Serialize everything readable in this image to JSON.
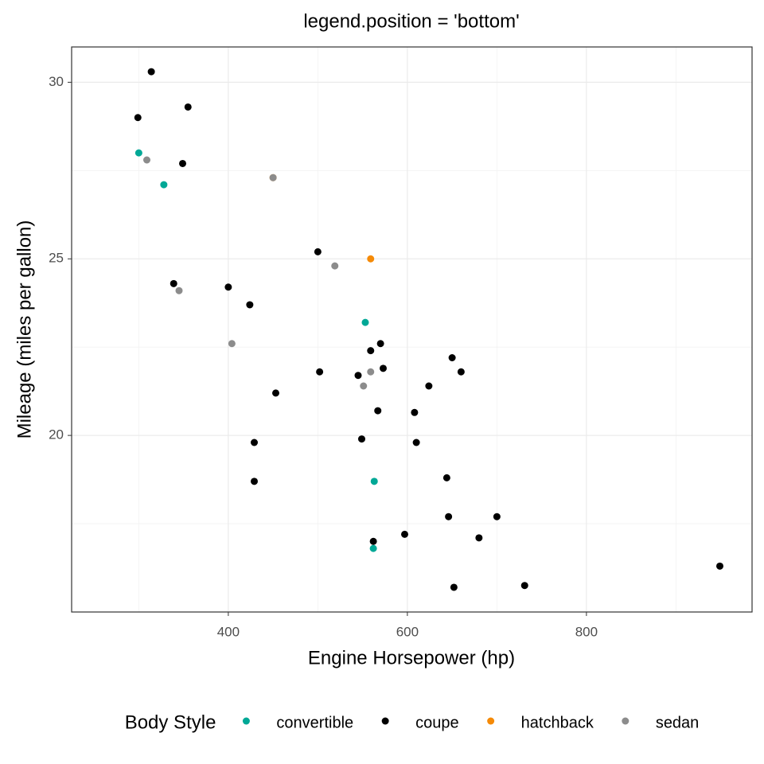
{
  "chart_data": {
    "type": "scatter",
    "title": "legend.position = 'bottom'",
    "x_label": "Engine Horsepower (hp)",
    "y_label": "Mileage (miles per gallon)",
    "xlim": [
      225,
      985
    ],
    "ylim": [
      15,
      31
    ],
    "xticks": [
      400,
      600,
      800
    ],
    "yticks": [
      20,
      25,
      30
    ],
    "grid": true,
    "legend": {
      "title": "Body Style",
      "position": "bottom"
    },
    "series": [
      {
        "name": "convertible",
        "color": "#00a896",
        "x": [
          300,
          328,
          553,
          563,
          562
        ],
        "values": [
          28.0,
          27.1,
          23.2,
          18.7,
          16.8
        ]
      },
      {
        "name": "coupe",
        "color": "#000000",
        "x": [
          314,
          299,
          355,
          349,
          339,
          400,
          424,
          500,
          570,
          559,
          650,
          660,
          502,
          573,
          545,
          453,
          624,
          567,
          608,
          429,
          549,
          610,
          429,
          644,
          646,
          700,
          680,
          597,
          562,
          949,
          652,
          731
        ],
        "values": [
          30.3,
          29.0,
          29.3,
          27.7,
          24.3,
          24.2,
          23.7,
          25.2,
          22.6,
          22.4,
          22.2,
          21.8,
          21.8,
          21.9,
          21.7,
          21.2,
          21.4,
          20.7,
          20.65,
          19.8,
          19.9,
          19.8,
          18.7,
          18.8,
          17.7,
          17.7,
          17.1,
          17.2,
          17.0,
          16.3,
          15.7,
          15.75
        ]
      },
      {
        "name": "hatchback",
        "color": "#f58a07",
        "x": [
          450,
          559
        ],
        "values": [
          27.3,
          25.0
        ]
      },
      {
        "name": "sedan",
        "color": "#8c8c8c",
        "x": [
          309,
          450,
          519,
          345,
          404,
          559,
          551
        ],
        "values": [
          27.8,
          27.3,
          24.8,
          24.1,
          22.6,
          21.8,
          21.4
        ]
      }
    ]
  }
}
